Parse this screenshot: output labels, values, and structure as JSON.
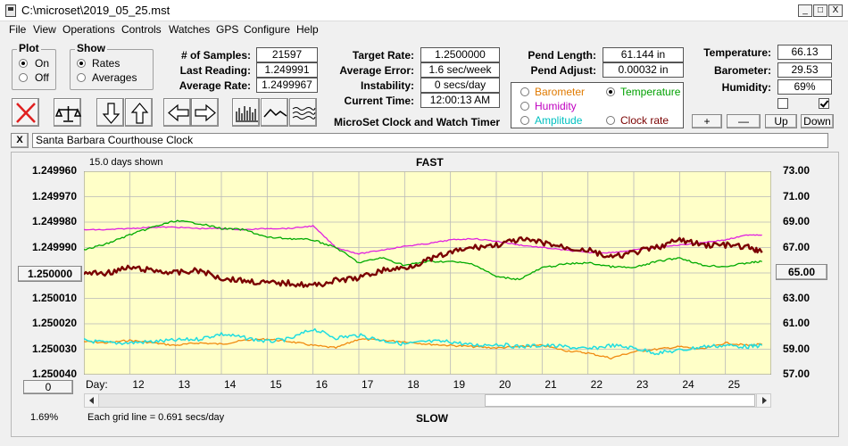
{
  "window": {
    "title": "C:\\microset\\2019_05_25.mst",
    "minimize": "_",
    "maximize": "□",
    "close": "X"
  },
  "menu": [
    "File",
    "View",
    "Operations",
    "Controls",
    "Watches",
    "GPS",
    "Configure",
    "Help"
  ],
  "plot_group": {
    "title": "Plot",
    "on": "On",
    "off": "Off",
    "selected": "On"
  },
  "show_group": {
    "title": "Show",
    "rates": "Rates",
    "averages": "Averages",
    "selected": "Rates"
  },
  "stats": {
    "samples_label": "# of Samples:",
    "samples": "21597",
    "last_label": "Last Reading:",
    "last": "1.249991",
    "avg_label": "Average Rate:",
    "avg": "1.2499967"
  },
  "rates": {
    "target_label": "Target Rate:",
    "target": "1.2500000",
    "error_label": "Average Error:",
    "error": "1.6 sec/week",
    "instab_label": "Instability:",
    "instab": "0 secs/day",
    "time_label": "Current Time:",
    "time": "12:00:13 AM"
  },
  "app_name": "MicroSet Clock and Watch Timer",
  "pend": {
    "length_label": "Pend Length:",
    "length": "61.144 in",
    "adjust_label": "Pend Adjust:",
    "adjust": "0.00032 in"
  },
  "env": {
    "temp_label": "Temperature:",
    "temp": "66.13",
    "baro_label": "Barometer:",
    "baro": "29.53",
    "hum_label": "Humidity:",
    "hum": "69%"
  },
  "checks": [
    false,
    true
  ],
  "legend": {
    "barometer": "Barometer",
    "temperature": "Temperature",
    "humidity": "Humidity",
    "amplitude": "Amplitude",
    "clock_rate": "Clock rate",
    "selected": "Temperature"
  },
  "scale_buttons": {
    "plus": "+",
    "minus": "—",
    "up": "Up",
    "down": "Down"
  },
  "clock_name": "Santa Barbara Courthouse Clock",
  "close_x": "X",
  "chart": {
    "days_shown": "15.0 days shown",
    "top_label": "FAST",
    "bottom_label": "SLOW",
    "day_label": "Day:",
    "grid_note": "Each grid line = 0.691 secs/day",
    "left_offset_btn": "0",
    "pct": "1.69%",
    "center_left": "1.250000",
    "center_right": "65.00"
  },
  "colors": {
    "clock_rate": "#7a0000",
    "temperature": "#00aa00",
    "humidity": "#e020e0",
    "amplitude": "#20dde0",
    "barometer": "#f08a10",
    "plot_bg": "#ffffc8",
    "legend_text": {
      "barometer": "#e07a00",
      "temperature": "#00a000",
      "humidity": "#c000c0",
      "amplitude": "#00c0c0",
      "clock_rate": "#7a0000"
    }
  },
  "chart_data": {
    "type": "line",
    "xlabel": "Day:",
    "x_ticks": [
      12,
      13,
      14,
      15,
      16,
      17,
      18,
      19,
      20,
      21,
      22,
      23,
      24,
      25
    ],
    "xlim": [
      11.0,
      26.0
    ],
    "y_left_ticks": [
      "1.249960",
      "1.249970",
      "1.249980",
      "1.249990",
      "1.250000",
      "1.250010",
      "1.250020",
      "1.250030",
      "1.250040"
    ],
    "y_left_range": [
      1.24996,
      1.25004
    ],
    "y_left_inverted": true,
    "y_right_ticks": [
      "73.00",
      "71.00",
      "69.00",
      "67.00",
      "65.00",
      "63.00",
      "61.00",
      "59.00",
      "57.00"
    ],
    "y_right_range": [
      57.0,
      73.0
    ],
    "grid": true,
    "series": [
      {
        "name": "Clock rate",
        "axis": "left",
        "x": [
          11.0,
          11.5,
          12.0,
          12.5,
          13.0,
          13.5,
          14.0,
          14.5,
          15.0,
          15.5,
          16.0,
          16.5,
          17.0,
          17.5,
          18.0,
          18.5,
          19.0,
          19.5,
          20.0,
          20.5,
          21.0,
          21.5,
          22.0,
          22.5,
          23.0,
          23.5,
          24.0,
          24.5,
          25.0,
          25.5,
          25.8
        ],
        "values": [
          1.25,
          1.25,
          1.249998,
          1.249999,
          1.25,
          1.249999,
          1.250002,
          1.250003,
          1.250004,
          1.250004,
          1.250005,
          1.250003,
          1.250002,
          1.249999,
          1.249998,
          1.249995,
          1.249992,
          1.24999,
          1.249989,
          1.249987,
          1.249988,
          1.24999,
          1.249991,
          1.249994,
          1.249992,
          1.24999,
          1.249987,
          1.249989,
          1.249989,
          1.24999,
          1.249992
        ]
      },
      {
        "name": "Temperature",
        "axis": "right",
        "x": [
          11.0,
          11.5,
          12.0,
          12.5,
          13.0,
          13.5,
          14.0,
          14.5,
          15.0,
          15.5,
          16.0,
          16.5,
          17.0,
          17.5,
          18.0,
          18.5,
          19.0,
          19.5,
          20.0,
          20.5,
          21.0,
          21.5,
          22.0,
          22.5,
          23.0,
          23.5,
          24.0,
          24.5,
          25.0,
          25.5,
          25.8
        ],
        "values": [
          66.8,
          67.3,
          68.0,
          68.6,
          69.1,
          68.9,
          68.5,
          68.4,
          67.8,
          67.7,
          67.6,
          67.0,
          65.8,
          66.2,
          65.6,
          65.9,
          65.9,
          65.7,
          64.7,
          64.5,
          65.4,
          65.7,
          65.8,
          65.5,
          65.4,
          65.9,
          66.2,
          65.6,
          65.5,
          65.8,
          65.9
        ]
      },
      {
        "name": "Humidity",
        "axis": "right",
        "x": [
          11.0,
          11.5,
          12.0,
          12.5,
          13.0,
          13.5,
          14.0,
          14.5,
          15.0,
          15.5,
          16.0,
          16.5,
          17.0,
          17.5,
          18.0,
          18.5,
          19.0,
          19.5,
          20.0,
          20.5,
          21.0,
          21.5,
          22.0,
          22.5,
          23.0,
          23.5,
          24.0,
          24.5,
          25.0,
          25.5,
          25.8
        ],
        "values": [
          68.4,
          68.4,
          68.5,
          68.6,
          68.6,
          68.5,
          68.5,
          68.4,
          68.5,
          68.5,
          68.7,
          67.0,
          66.5,
          66.8,
          67.1,
          67.3,
          67.6,
          67.7,
          67.5,
          67.2,
          67.0,
          66.8,
          66.6,
          66.6,
          66.8,
          67.0,
          67.2,
          67.4,
          67.6,
          68.0,
          68.0
        ]
      },
      {
        "name": "Amplitude",
        "axis": "right",
        "x": [
          11.0,
          11.5,
          12.0,
          12.5,
          13.0,
          13.5,
          14.0,
          14.5,
          15.0,
          15.5,
          16.0,
          16.5,
          17.0,
          17.5,
          18.0,
          18.5,
          19.0,
          19.5,
          20.0,
          20.5,
          21.0,
          21.5,
          22.0,
          22.5,
          23.0,
          23.5,
          24.0,
          24.5,
          25.0,
          25.5,
          25.8
        ],
        "values": [
          59.7,
          59.5,
          59.5,
          59.6,
          59.7,
          59.8,
          60.2,
          59.9,
          59.6,
          59.8,
          60.6,
          59.9,
          60.1,
          59.7,
          59.4,
          59.6,
          59.6,
          59.3,
          59.4,
          59.2,
          59.3,
          59.2,
          59.0,
          59.3,
          59.1,
          58.7,
          58.9,
          59.2,
          59.3,
          59.2,
          59.3
        ]
      },
      {
        "name": "Barometer",
        "axis": "right",
        "x": [
          11.0,
          11.5,
          12.0,
          12.5,
          13.0,
          13.5,
          14.0,
          14.5,
          15.0,
          15.5,
          16.0,
          16.5,
          17.0,
          17.5,
          18.0,
          18.5,
          19.0,
          19.5,
          20.0,
          20.5,
          21.0,
          21.5,
          22.0,
          22.5,
          23.0,
          23.5,
          24.0,
          24.5,
          25.0,
          25.5,
          25.8
        ],
        "values": [
          59.6,
          59.5,
          59.7,
          59.5,
          59.3,
          59.5,
          59.4,
          59.7,
          59.8,
          59.6,
          59.3,
          59.1,
          59.8,
          59.7,
          59.6,
          59.4,
          59.3,
          59.2,
          59.1,
          59.2,
          59.3,
          58.9,
          58.7,
          58.3,
          58.8,
          59.0,
          59.2,
          59.0,
          59.5,
          59.3,
          59.4
        ]
      }
    ]
  }
}
